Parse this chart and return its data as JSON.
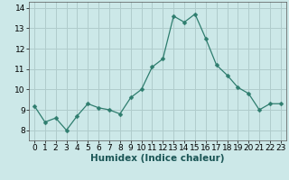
{
  "x": [
    0,
    1,
    2,
    3,
    4,
    5,
    6,
    7,
    8,
    9,
    10,
    11,
    12,
    13,
    14,
    15,
    16,
    17,
    18,
    19,
    20,
    21,
    22,
    23
  ],
  "y": [
    9.2,
    8.4,
    8.6,
    8.0,
    8.7,
    9.3,
    9.1,
    9.0,
    8.8,
    9.6,
    10.0,
    11.1,
    11.5,
    13.6,
    13.3,
    13.7,
    12.5,
    11.2,
    10.7,
    10.1,
    9.8,
    9.0,
    9.3,
    9.3
  ],
  "xlabel": "Humidex (Indice chaleur)",
  "ylim": [
    7.5,
    14.3
  ],
  "xlim": [
    -0.5,
    23.5
  ],
  "yticks": [
    8,
    9,
    10,
    11,
    12,
    13,
    14
  ],
  "xticks": [
    0,
    1,
    2,
    3,
    4,
    5,
    6,
    7,
    8,
    9,
    10,
    11,
    12,
    13,
    14,
    15,
    16,
    17,
    18,
    19,
    20,
    21,
    22,
    23
  ],
  "line_color": "#2e7d6e",
  "marker": "D",
  "marker_size": 2.5,
  "bg_color": "#cce8e8",
  "grid_color": "#b0cccc",
  "label_fontsize": 7.5,
  "tick_fontsize": 6.5
}
